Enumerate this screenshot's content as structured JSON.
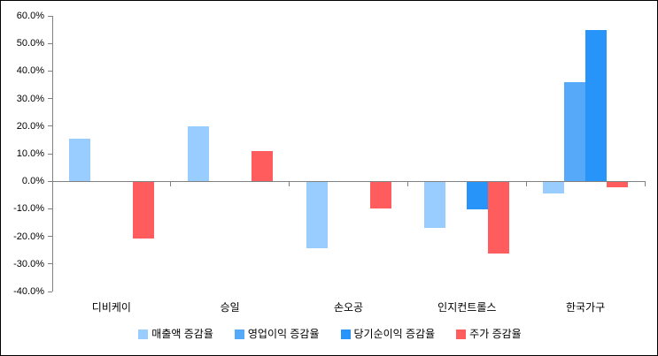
{
  "window": {
    "background": "#ffffff",
    "border_color": "#000000",
    "axis_color": "#808080",
    "text_color": "#000000"
  },
  "chart_data": {
    "type": "bar",
    "title": "",
    "categories": [
      "디비케이",
      "승일",
      "손오공",
      "인지컨트롤스",
      "한국가구"
    ],
    "series": [
      {
        "name": "매출액 증감율",
        "color": "#99CCFF",
        "values": [
          15.5,
          20,
          -24,
          -16.5,
          -4
        ]
      },
      {
        "name": "영업이익 증감율",
        "color": "#55A9F8",
        "values": [
          0,
          0,
          0,
          0,
          36
        ]
      },
      {
        "name": "당기순이익 증감율",
        "color": "#2694F9",
        "values": [
          0,
          0,
          0,
          -10,
          55
        ]
      },
      {
        "name": "주가 증감율",
        "color": "#FF5C5E",
        "values": [
          -20.5,
          11,
          -9.5,
          -26,
          -2
        ]
      }
    ],
    "y_axis": {
      "min": -40,
      "max": 60,
      "step": 10,
      "tick_labels": [
        "60.0%",
        "50.0%",
        "40.0%",
        "30.0%",
        "20.0%",
        "10.0%",
        "0.0%",
        "-10.0%",
        "-20.0%",
        "-30.0%",
        "-40.0%"
      ],
      "format": "percent"
    },
    "legend_position": "bottom",
    "grid": false,
    "xlabel": "",
    "ylabel": ""
  }
}
